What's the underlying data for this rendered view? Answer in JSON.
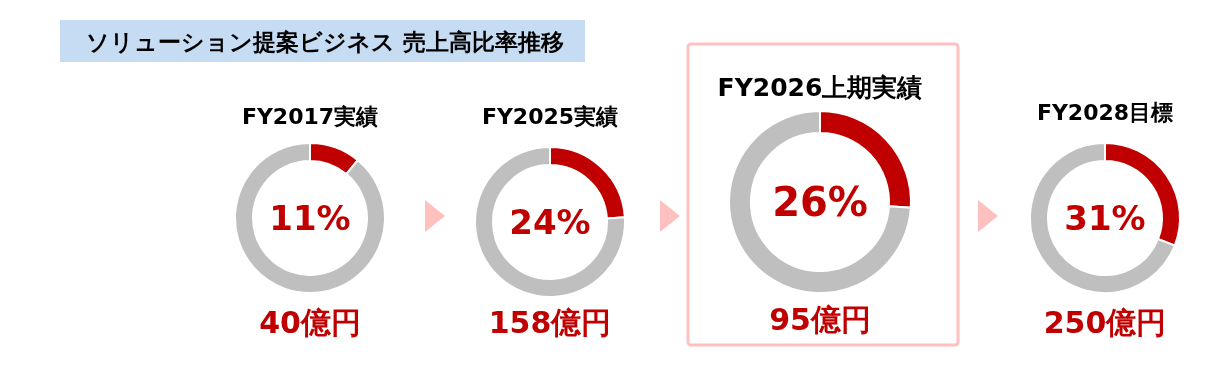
{
  "chart_data": [
    {
      "type": "donut",
      "title": "ソリューション提案ビジネス 売上高比率推移",
      "subtitle": "FY2017実績",
      "categories": [
        null,
        null
      ],
      "values": [
        11,
        89
      ],
      "colors": [
        "#c00000",
        "#bfbfbf"
      ],
      "annotations": [
        "11%",
        "40億円"
      ]
    },
    {
      "type": "donut",
      "subtitle": "FY2025実績",
      "categories": [
        null,
        null
      ],
      "values": [
        24,
        76
      ],
      "colors": [
        "#c00000",
        "#bfbfbf"
      ],
      "annotations": [
        "24%",
        "158億円"
      ]
    },
    {
      "type": "donut",
      "subtitle": "FY2026上期実績",
      "categories": [
        null,
        null
      ],
      "values": [
        26,
        74
      ],
      "colors": [
        "#c00000",
        "#bfbfbf"
      ],
      "annotations": [
        "26%",
        "95億円"
      ]
    },
    {
      "type": "donut",
      "subtitle": "FY2028目標",
      "categories": [
        null,
        null
      ],
      "values": [
        31,
        69
      ],
      "colors": [
        "#c00000",
        "#bfbfbf"
      ],
      "annotations": [
        "31%",
        "250億円"
      ]
    }
  ]
}
